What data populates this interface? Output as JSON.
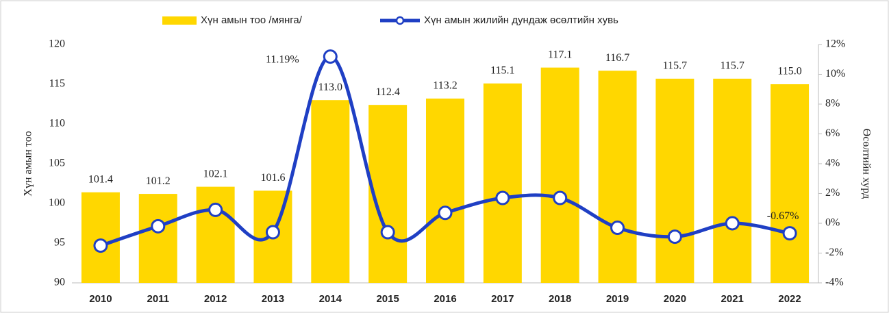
{
  "chart_data": {
    "type": "bar_line",
    "categories": [
      "2010",
      "2011",
      "2012",
      "2013",
      "2014",
      "2015",
      "2016",
      "2017",
      "2018",
      "2019",
      "2020",
      "2021",
      "2022"
    ],
    "series": [
      {
        "name": "Хүн амын тоо /мянга/",
        "type": "bar",
        "color": "#ffd700",
        "values": [
          101.4,
          101.2,
          102.1,
          101.6,
          113.0,
          112.4,
          113.2,
          115.1,
          117.1,
          116.7,
          115.7,
          115.7,
          115.0
        ],
        "value_labels": [
          "101.4",
          "101.2",
          "102.1",
          "101.6",
          "113.0",
          "112.4",
          "113.2",
          "115.1",
          "117.1",
          "116.7",
          "115.7",
          "115.7",
          "115.0"
        ]
      },
      {
        "name": "Хүн амын жилийн дундаж өсөлтийн хувь",
        "type": "line",
        "axis": "y2",
        "color": "#1f3fc4",
        "values": [
          -1.5,
          -0.2,
          0.9,
          -0.6,
          11.19,
          -0.6,
          0.7,
          1.7,
          1.7,
          -0.3,
          -0.9,
          0.0,
          -0.67
        ],
        "value_labels": [
          null,
          null,
          null,
          null,
          "11.19%",
          null,
          null,
          null,
          null,
          null,
          null,
          null,
          "-0.67%"
        ]
      }
    ],
    "y_label": "Хүн амын тоо",
    "y2_label": "Өсөлтийн хурд",
    "ylim": [
      90,
      120
    ],
    "yticks": [
      90,
      95,
      100,
      105,
      110,
      115,
      120
    ],
    "y2lim": [
      -4,
      12
    ],
    "y2ticks": [
      {
        "value": -4,
        "label": "-4%"
      },
      {
        "value": -2,
        "label": "-2%"
      },
      {
        "value": 0,
        "label": "0%"
      },
      {
        "value": 2,
        "label": "2%"
      },
      {
        "value": 4,
        "label": "4%"
      },
      {
        "value": 6,
        "label": "6%"
      },
      {
        "value": 8,
        "label": "8%"
      },
      {
        "value": 10,
        "label": "10%"
      },
      {
        "value": 12,
        "label": "12%"
      }
    ],
    "legend": "top"
  }
}
